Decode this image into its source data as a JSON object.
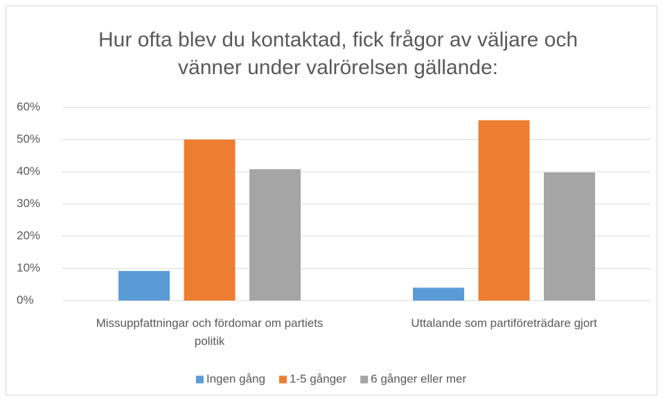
{
  "chart_data": {
    "type": "bar",
    "title": "Hur ofta blev du kontaktad, fick frågor av väljare och vänner under valrörelsen gällande:",
    "categories": [
      "Missuppfattningar och fördomar om partiets politik",
      "Uttalande som partiföreträdare gjort"
    ],
    "series": [
      {
        "name": "Ingen gång",
        "color": "#5b9bd5",
        "values": [
          9.2,
          4
        ]
      },
      {
        "name": "1-5 gånger",
        "color": "#ed7d31",
        "values": [
          50,
          56
        ]
      },
      {
        "name": "6 gånger eller mer",
        "color": "#a5a5a5",
        "values": [
          40.8,
          39.8
        ]
      }
    ],
    "ylim": [
      0,
      60
    ],
    "yticks": [
      {
        "value": 0,
        "label": "0%"
      },
      {
        "value": 10,
        "label": "10%"
      },
      {
        "value": 20,
        "label": "20%"
      },
      {
        "value": 30,
        "label": "30%"
      },
      {
        "value": 40,
        "label": "40%"
      },
      {
        "value": 50,
        "label": "50%"
      },
      {
        "value": 60,
        "label": "60%"
      }
    ],
    "grid": true,
    "legend": "bottom"
  }
}
